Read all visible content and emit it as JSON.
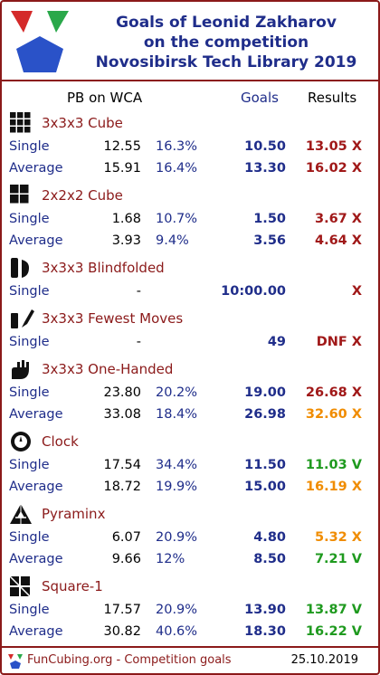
{
  "header": {
    "title_lines": [
      "Goals of Leonid Zakharov",
      "on the competition",
      "Novosibirsk Tech Library 2019"
    ]
  },
  "columns": {
    "pb": "PB on WCA",
    "goals": "Goals",
    "results": "Results"
  },
  "events": [
    {
      "name": "3x3x3 Cube",
      "icon": "cube-3x3-icon",
      "rows": [
        {
          "label": "Single",
          "pb": "12.55",
          "pct": "16.3%",
          "goal": "10.50",
          "result": "13.05 X",
          "status": "red"
        },
        {
          "label": "Average",
          "pb": "15.91",
          "pct": "16.4%",
          "goal": "13.30",
          "result": "16.02 X",
          "status": "red"
        }
      ]
    },
    {
      "name": "2x2x2 Cube",
      "icon": "cube-2x2-icon",
      "rows": [
        {
          "label": "Single",
          "pb": "1.68",
          "pct": "10.7%",
          "goal": "1.50",
          "result": "3.67 X",
          "status": "red"
        },
        {
          "label": "Average",
          "pb": "3.93",
          "pct": "9.4%",
          "goal": "3.56",
          "result": "4.64 X",
          "status": "red"
        }
      ]
    },
    {
      "name": "3x3x3 Blindfolded",
      "icon": "blindfold-icon",
      "rows": [
        {
          "label": "Single",
          "pb": "-",
          "pct": "",
          "goal": "10:00.00",
          "result": "X",
          "status": "red"
        }
      ]
    },
    {
      "name": "3x3x3 Fewest Moves",
      "icon": "fewest-moves-icon",
      "rows": [
        {
          "label": "Single",
          "pb": "-",
          "pct": "",
          "goal": "49",
          "result": "DNF X",
          "status": "red"
        }
      ]
    },
    {
      "name": "3x3x3 One-Handed",
      "icon": "one-handed-icon",
      "rows": [
        {
          "label": "Single",
          "pb": "23.80",
          "pct": "20.2%",
          "goal": "19.00",
          "result": "26.68 X",
          "status": "red"
        },
        {
          "label": "Average",
          "pb": "33.08",
          "pct": "18.4%",
          "goal": "26.98",
          "result": "32.60 X",
          "status": "orange"
        }
      ]
    },
    {
      "name": "Clock",
      "icon": "clock-icon",
      "rows": [
        {
          "label": "Single",
          "pb": "17.54",
          "pct": "34.4%",
          "goal": "11.50",
          "result": "11.03 V",
          "status": "green"
        },
        {
          "label": "Average",
          "pb": "18.72",
          "pct": "19.9%",
          "goal": "15.00",
          "result": "16.19 X",
          "status": "orange"
        }
      ]
    },
    {
      "name": "Pyraminx",
      "icon": "pyraminx-icon",
      "rows": [
        {
          "label": "Single",
          "pb": "6.07",
          "pct": "20.9%",
          "goal": "4.80",
          "result": "5.32 X",
          "status": "orange"
        },
        {
          "label": "Average",
          "pb": "9.66",
          "pct": "12%",
          "goal": "8.50",
          "result": "7.21 V",
          "status": "green"
        }
      ]
    },
    {
      "name": "Square-1",
      "icon": "square-1-icon",
      "rows": [
        {
          "label": "Single",
          "pb": "17.57",
          "pct": "20.9%",
          "goal": "13.90",
          "result": "13.87 V",
          "status": "green"
        },
        {
          "label": "Average",
          "pb": "30.82",
          "pct": "40.6%",
          "goal": "18.30",
          "result": "16.22 V",
          "status": "green"
        }
      ]
    }
  ],
  "footer": {
    "site": "FunCubing.org - Competition goals",
    "date": "25.10.2019"
  },
  "colors": {
    "frame": "#8b1a1a",
    "title": "#1f2d8a",
    "red": "#a01818",
    "orange": "#f08c00",
    "green": "#1f9a1f"
  }
}
